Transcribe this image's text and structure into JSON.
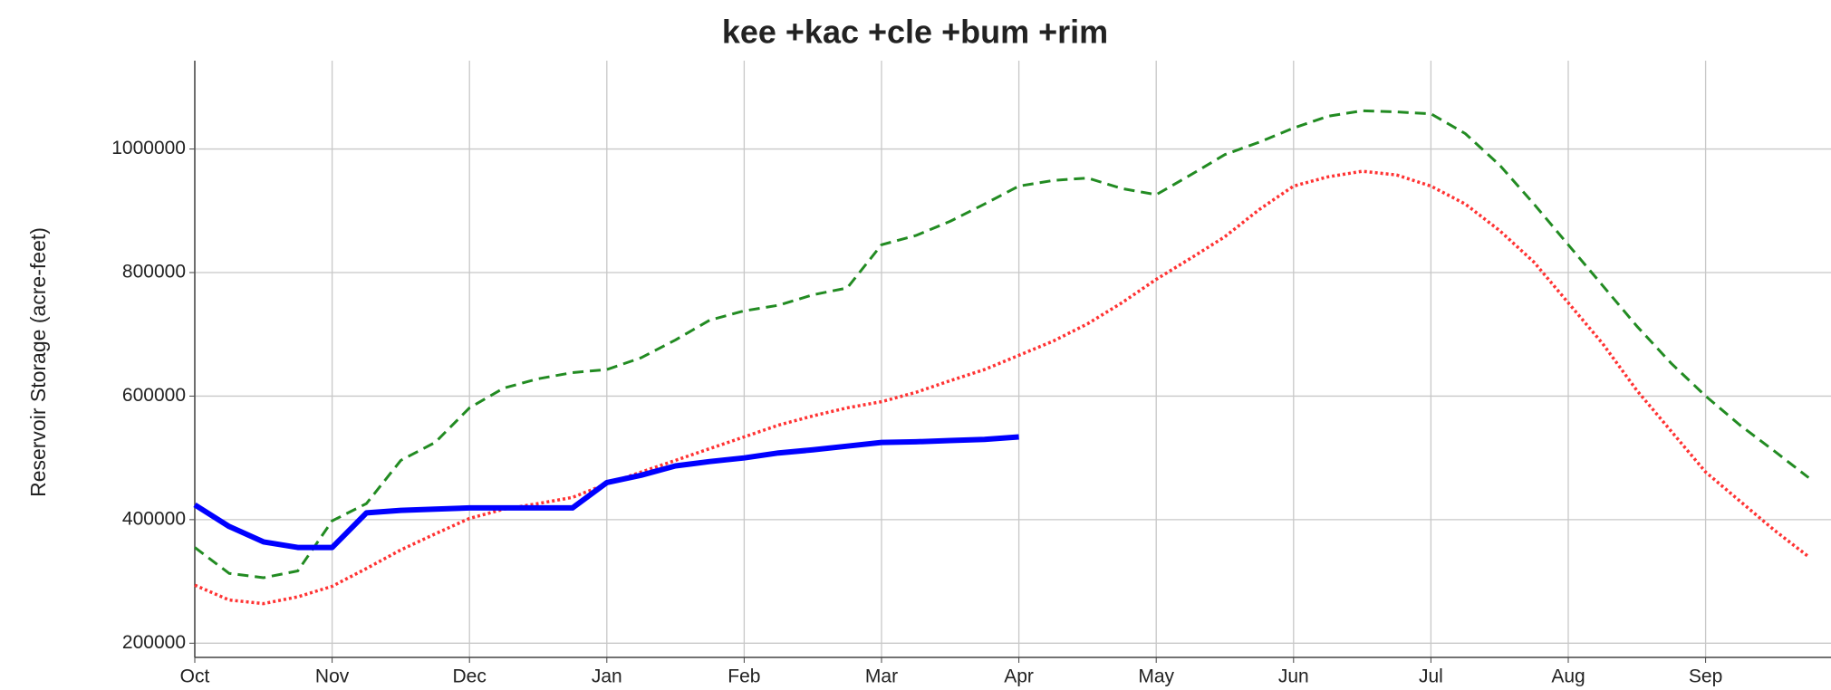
{
  "chart_data": {
    "type": "line",
    "title": "kee +kac +cle +bum +rim",
    "y_label": "Reservoir Storage (acre-feet)",
    "categories": [
      "Oct",
      null,
      null,
      null,
      "Nov",
      null,
      null,
      null,
      "Dec",
      null,
      null,
      null,
      "Jan",
      null,
      null,
      null,
      "Feb",
      null,
      null,
      null,
      "Mar",
      null,
      null,
      null,
      "Apr",
      null,
      null,
      null,
      "May",
      null,
      null,
      null,
      "Jun",
      null,
      null,
      null,
      "Jul",
      null,
      null,
      null,
      "Aug",
      null,
      null,
      null,
      "Sep",
      null,
      null,
      null
    ],
    "series": [
      {
        "color": "#228b22",
        "dash": "dashed",
        "values": [
          355000,
          313000,
          306000,
          317000,
          398000,
          426000,
          496000,
          525000,
          581000,
          613000,
          628000,
          638000,
          643000,
          662000,
          691000,
          723000,
          738000,
          747000,
          764000,
          775000,
          845000,
          860000,
          883000,
          911000,
          940000,
          949000,
          953000,
          936000,
          926000,
          958000,
          991000,
          1011000,
          1034000,
          1053000,
          1062000,
          1060000,
          1057000,
          1025000,
          974000,
          911000,
          845000,
          779000,
          713000,
          653000,
          600000,
          553000,
          511000,
          468000
        ]
      },
      {
        "color": "#ff3333",
        "dash": "dotted",
        "values": [
          294000,
          270000,
          264000,
          275000,
          292000,
          321000,
          351000,
          377000,
          402000,
          417000,
          426000,
          436000,
          458000,
          477000,
          496000,
          515000,
          534000,
          553000,
          568000,
          581000,
          591000,
          606000,
          625000,
          643000,
          666000,
          689000,
          717000,
          751000,
          789000,
          823000,
          858000,
          902000,
          940000,
          955000,
          964000,
          958000,
          940000,
          911000,
          868000,
          817000,
          751000,
          685000,
          609000,
          543000,
          477000,
          430000,
          383000,
          340000
        ]
      },
      {
        "color": "#0000ff",
        "dash": "solid",
        "values": [
          424000,
          389000,
          364000,
          355000,
          355000,
          411000,
          415000,
          417000,
          419000,
          419000,
          419000,
          419000,
          460000,
          472000,
          487000,
          494000,
          500000,
          508000,
          513000,
          519000,
          525000,
          526000,
          528000,
          530000,
          534000,
          null,
          null,
          null,
          null,
          null,
          null,
          null,
          null,
          null,
          null,
          null,
          null,
          null,
          null,
          null,
          null,
          null,
          null,
          null,
          null,
          null,
          null,
          null
        ]
      }
    ],
    "ylim": [
      177000,
      1143000
    ],
    "yticks": [
      200000,
      400000,
      600000,
      800000,
      1000000
    ],
    "grid": true
  }
}
